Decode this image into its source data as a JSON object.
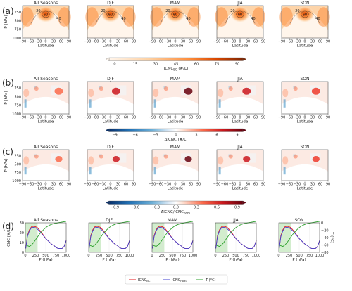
{
  "panel_labels": [
    "(a)",
    "(b)",
    "(c)",
    "(d)"
  ],
  "season_titles": [
    "All Seasons",
    "DJF",
    "MAM",
    "JJA",
    "SON"
  ],
  "colors": {
    "orange_ramp": [
      "#fff5eb",
      "#fdd0a2",
      "#fd8d3c",
      "#d94801",
      "#7f2704"
    ],
    "diverging": [
      "#08306b",
      "#2171b5",
      "#6baed6",
      "#deebf7",
      "#ffffff",
      "#fee0d2",
      "#fb6a4a",
      "#cb181d",
      "#67000d"
    ],
    "green_fill": "#c7e9c0",
    "red_line": "#e41a1c",
    "blue_line": "#4040d0",
    "green_line": "#2ca02c"
  },
  "maps": {
    "xlabel": "Latitude",
    "ylabel": "P (hPa)",
    "xticks": [
      "−90",
      "−60",
      "−30",
      "0",
      "30",
      "60",
      "90"
    ],
    "yticks": [
      "250",
      "500",
      "750",
      "1000"
    ]
  },
  "chart_data": [
    {
      "type": "heatmap",
      "panel": "(a)",
      "facets": [
        "All Seasons",
        "DJF",
        "MAM",
        "JJA",
        "SON"
      ],
      "xlabel": "Latitude",
      "ylabel": "P (hPa)",
      "xlim": [
        -90,
        90
      ],
      "ylim": [
        1000,
        100
      ],
      "colorbar": {
        "label": "ICNC",
        "label_sub": "BC",
        "label_unit": "(#/L)",
        "ticks": [
          "0",
          "15",
          "30",
          "45",
          "60",
          "75",
          "90"
        ],
        "range": [
          0,
          90
        ]
      },
      "contour_labels": [
        "20",
        "40",
        "60"
      ]
    },
    {
      "type": "heatmap",
      "panel": "(b)",
      "facets": [
        "All Seasons",
        "DJF",
        "MAM",
        "JJA",
        "SON"
      ],
      "xlabel": "Latitude",
      "ylabel": "P (hPa)",
      "xlim": [
        -90,
        90
      ],
      "ylim": [
        1000,
        100
      ],
      "colorbar": {
        "label": "ΔICNC (#/L)",
        "ticks": [
          "−9",
          "−6",
          "−3",
          "0",
          "3",
          "6",
          "9"
        ],
        "range": [
          -9,
          9
        ]
      }
    },
    {
      "type": "heatmap",
      "panel": "(c)",
      "facets": [
        "All Seasons",
        "DJF",
        "MAM",
        "JJA",
        "SON"
      ],
      "xlabel": "Latitude",
      "ylabel": "P (hPa)",
      "xlim": [
        -90,
        90
      ],
      "ylim": [
        1000,
        100
      ],
      "colorbar": {
        "label": "ΔICNC/ICNC",
        "label_sub": "noBC",
        "ticks": [
          "−0.9",
          "−0.6",
          "−0.3",
          "0.0",
          "0.3",
          "0.6",
          "0.9"
        ],
        "range": [
          -0.9,
          0.9
        ]
      }
    },
    {
      "type": "line",
      "panel": "(d)",
      "facets": [
        "All Seasons",
        "DJF",
        "MAM",
        "JJA",
        "SON"
      ],
      "xlabel": "P (hPa)",
      "ylabel": "ICNC (#/L)",
      "y2label": "T (°C)",
      "xlim": [
        0,
        1000
      ],
      "ylim": [
        0,
        30
      ],
      "y2lim": [
        -80,
        0
      ],
      "xticks": [
        "0",
        "250",
        "500",
        "750",
        "1000"
      ],
      "yticks": [
        "0",
        "10",
        "20",
        "30"
      ],
      "y2ticks": [
        "0",
        "−20",
        "−40",
        "−60",
        "−80"
      ],
      "shade_region": [
        0,
        300
      ],
      "legend": {
        "placement": "bottom",
        "entries": [
          {
            "label": "ICNC",
            "sub": "BC",
            "color": "#e41a1c"
          },
          {
            "label": "ICNC",
            "sub": "noBC",
            "color": "#4040d0"
          },
          {
            "label": "T (°C)",
            "color": "#2ca02c"
          }
        ]
      },
      "x": [
        10,
        50,
        100,
        150,
        200,
        250,
        300,
        350,
        400,
        450,
        500,
        550,
        600,
        650,
        700,
        750,
        800,
        850,
        900,
        950,
        1000
      ],
      "series": [
        {
          "name": "ICNC_BC",
          "axis": "left",
          "values": [
            4,
            17,
            23,
            26,
            26.5,
            26,
            25,
            22.5,
            20,
            17,
            14,
            12,
            10,
            8,
            7,
            5,
            4,
            4,
            4,
            6,
            12
          ]
        },
        {
          "name": "ICNC_noBC",
          "axis": "left",
          "values": [
            4,
            16,
            22,
            25,
            25.5,
            25,
            23.5,
            21.5,
            19,
            16.5,
            14,
            12,
            10,
            8,
            7,
            5,
            4,
            4,
            4,
            6,
            12
          ]
        },
        {
          "name": "T (°C)",
          "axis": "right",
          "values": [
            -60,
            -62,
            -64,
            -60,
            -54,
            -46,
            -38,
            -30,
            -24,
            -18,
            -13,
            -9,
            -6,
            -4,
            -2,
            -1,
            0,
            1,
            2,
            3,
            4
          ]
        }
      ]
    }
  ]
}
